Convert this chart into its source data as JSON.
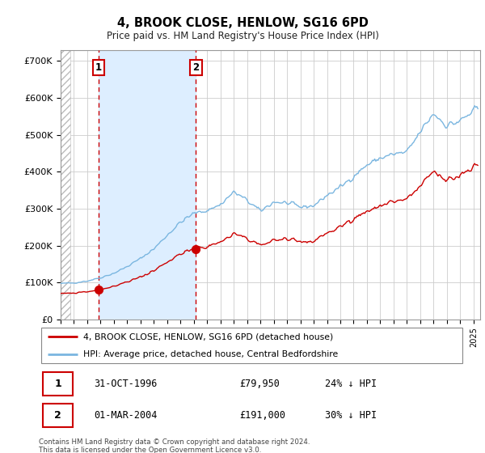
{
  "title": "4, BROOK CLOSE, HENLOW, SG16 6PD",
  "subtitle": "Price paid vs. HM Land Registry's House Price Index (HPI)",
  "ylim": [
    0,
    730000
  ],
  "xlim_start": 1994.0,
  "xlim_end": 2025.5,
  "sale1_x": 1996.833,
  "sale1_y": 79950,
  "sale2_x": 2004.166,
  "sale2_y": 191000,
  "hpi_color": "#7ab6e0",
  "price_color": "#cc0000",
  "shade_color": "#ddeeff",
  "hatch_color": "#cccccc",
  "legend_line1": "4, BROOK CLOSE, HENLOW, SG16 6PD (detached house)",
  "legend_line2": "HPI: Average price, detached house, Central Bedfordshire",
  "sale1_label": "1",
  "sale2_label": "2",
  "sale1_date": "31-OCT-1996",
  "sale1_price": "£79,950",
  "sale1_hpi": "24% ↓ HPI",
  "sale2_date": "01-MAR-2004",
  "sale2_price": "£191,000",
  "sale2_hpi": "30% ↓ HPI",
  "footer": "Contains HM Land Registry data © Crown copyright and database right 2024.\nThis data is licensed under the Open Government Licence v3.0.",
  "ytick_vals": [
    0,
    100000,
    200000,
    300000,
    400000,
    500000,
    600000,
    700000
  ],
  "ytick_labels": [
    "£0",
    "£100K",
    "£200K",
    "£300K",
    "£400K",
    "£500K",
    "£600K",
    "£700K"
  ]
}
